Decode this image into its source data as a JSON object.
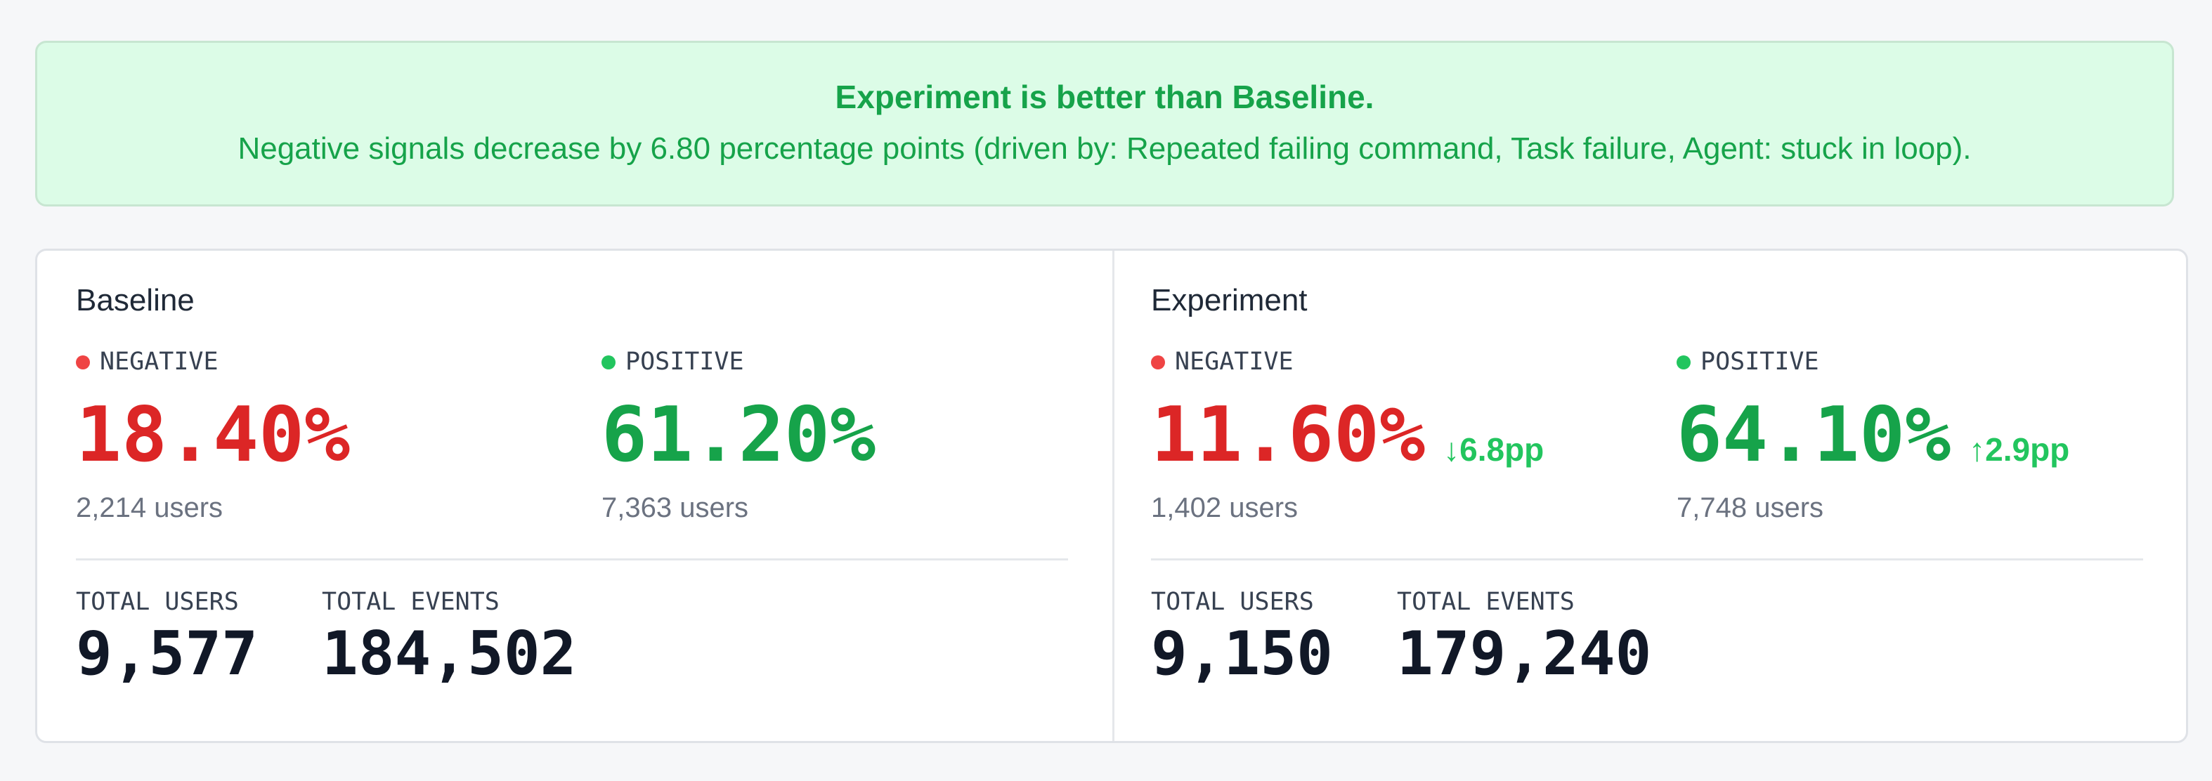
{
  "banner": {
    "title": "Experiment is better than Baseline.",
    "message": "Negative signals decrease by 6.80 percentage points (driven by: Repeated failing command, Task failure, Agent: stuck in loop)."
  },
  "panels": [
    {
      "title": "Baseline",
      "metrics": [
        {
          "label": "NEGATIVE",
          "value": "18.40%",
          "users": "2,214 users"
        },
        {
          "label": "POSITIVE",
          "value": "61.20%",
          "users": "7,363 users"
        }
      ],
      "totals": [
        {
          "label": "TOTAL USERS",
          "value": "9,577"
        },
        {
          "label": "TOTAL EVENTS",
          "value": "184,502"
        }
      ]
    },
    {
      "title": "Experiment",
      "metrics": [
        {
          "label": "NEGATIVE",
          "value": "11.60%",
          "delta": "↓6.8pp",
          "users": "1,402 users"
        },
        {
          "label": "POSITIVE",
          "value": "64.10%",
          "delta": "↑2.9pp",
          "users": "7,748 users"
        }
      ],
      "totals": [
        {
          "label": "TOTAL USERS",
          "value": "9,150"
        },
        {
          "label": "TOTAL EVENTS",
          "value": "179,240"
        }
      ]
    }
  ]
}
